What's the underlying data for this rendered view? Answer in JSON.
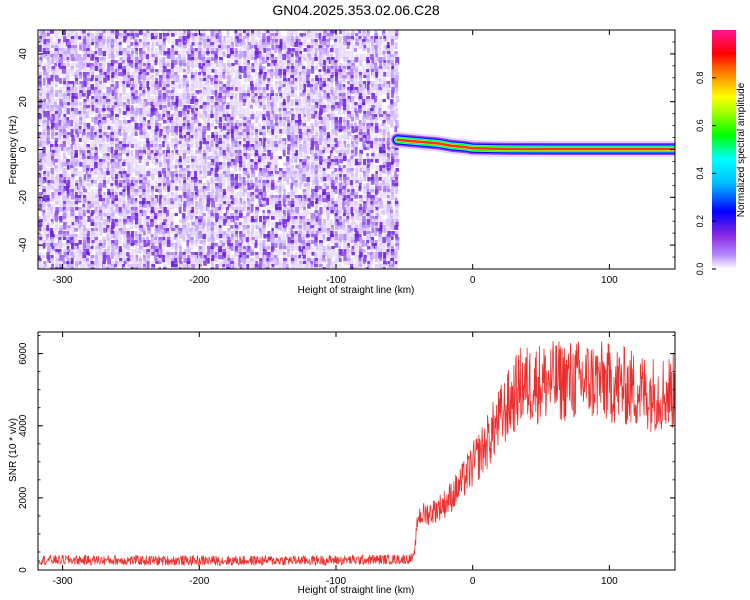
{
  "figure_title": "GN04.2025.353.02.06.C28",
  "chart_data": [
    {
      "type": "heatmap",
      "title": "GN04.2025.353.02.06.C28",
      "xlabel": "Height of straight line (km)",
      "ylabel": "Frequency (Hz)",
      "xlim": [
        -318,
        148
      ],
      "ylim": [
        -50,
        50
      ],
      "x_ticks": [
        -300,
        -200,
        -100,
        0,
        100
      ],
      "x_tick_labels": [
        "-300",
        "-200",
        "-100",
        "0",
        "100"
      ],
      "y_ticks": [
        -40,
        -20,
        0,
        20,
        40
      ],
      "y_tick_labels": [
        "-40",
        "-20",
        "0",
        "20",
        "40"
      ],
      "colorbar": {
        "label": "Normalized spectral amplitude",
        "range": [
          0,
          1
        ],
        "ticks": [
          0.0,
          0.2,
          0.4,
          0.6,
          0.8
        ],
        "tick_labels": [
          "0.0",
          "0.2",
          "0.4",
          "0.6",
          "0.8"
        ],
        "colormap": [
          "#ffffff",
          "#8a2be2",
          "#0000ff",
          "#00ffff",
          "#00ff00",
          "#ffff00",
          "#ff8000",
          "#ff0000",
          "#ff1493"
        ]
      },
      "noise_region_x": [
        -318,
        -55
      ],
      "signal_region_x": [
        -55,
        148
      ],
      "signal_track": [
        {
          "x": -55,
          "y": 4
        },
        {
          "x": -45,
          "y": 3.5
        },
        {
          "x": -35,
          "y": 3
        },
        {
          "x": -25,
          "y": 2.5
        },
        {
          "x": -15,
          "y": 1.5
        },
        {
          "x": -5,
          "y": 1
        },
        {
          "x": 0,
          "y": 0.5
        },
        {
          "x": 20,
          "y": 0.3
        },
        {
          "x": 60,
          "y": 0.2
        },
        {
          "x": 100,
          "y": 0.2
        },
        {
          "x": 148,
          "y": 0.2
        }
      ],
      "grid": false
    },
    {
      "type": "line",
      "xlabel": "Height of straight line (km)",
      "ylabel": "SNR (10 * v/v)",
      "xlim": [
        -318,
        148
      ],
      "ylim": [
        0,
        6600
      ],
      "x_ticks": [
        -300,
        -200,
        -100,
        0,
        100
      ],
      "x_tick_labels": [
        "-300",
        "-200",
        "-100",
        "0",
        "100"
      ],
      "y_ticks": [
        0,
        2000,
        4000,
        6000
      ],
      "y_tick_labels": [
        "0",
        "2000",
        "4000",
        "6000"
      ],
      "color": "#e8302e",
      "trend": [
        {
          "x": -318,
          "y": 280
        },
        {
          "x": -200,
          "y": 260
        },
        {
          "x": -100,
          "y": 270
        },
        {
          "x": -50,
          "y": 300
        },
        {
          "x": -43,
          "y": 320
        },
        {
          "x": -40,
          "y": 1500
        },
        {
          "x": -30,
          "y": 1600
        },
        {
          "x": -20,
          "y": 1850
        },
        {
          "x": -10,
          "y": 2300
        },
        {
          "x": 0,
          "y": 2900
        },
        {
          "x": 10,
          "y": 3500
        },
        {
          "x": 20,
          "y": 4200
        },
        {
          "x": 35,
          "y": 5100
        },
        {
          "x": 50,
          "y": 5200
        },
        {
          "x": 70,
          "y": 5250
        },
        {
          "x": 90,
          "y": 5250
        },
        {
          "x": 110,
          "y": 5100
        },
        {
          "x": 130,
          "y": 4900
        },
        {
          "x": 148,
          "y": 4950
        }
      ],
      "grid": false
    }
  ]
}
